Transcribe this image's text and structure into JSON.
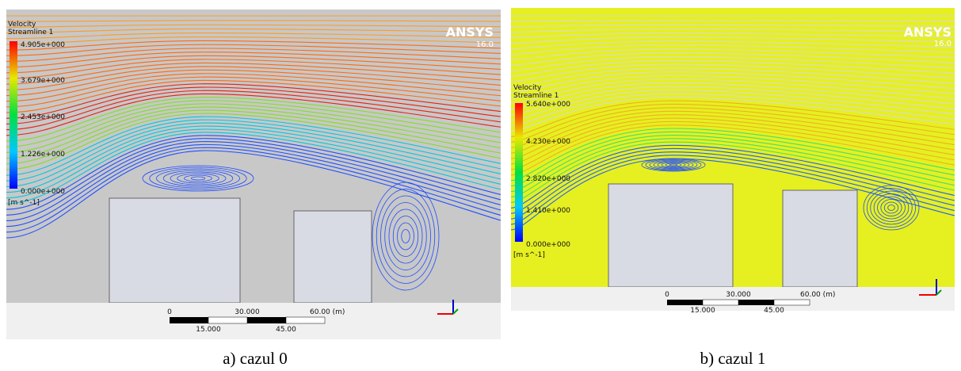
{
  "panels": [
    {
      "legend": {
        "title": "Velocity",
        "subtitle": "Streamline 1",
        "values": [
          "4.905e+000",
          "3.679e+000",
          "2.453e+000",
          "1.226e+000",
          "0.000e+000"
        ],
        "unit": "[m s^-1]"
      },
      "logo": "ANSYS",
      "version": "16.0",
      "scale": {
        "top": [
          "0",
          "30.000",
          "60.00 (m)"
        ],
        "bottom": [
          "15.000",
          "45.00"
        ]
      },
      "caption": "a) cazul 0"
    },
    {
      "legend": {
        "title": "Velocity",
        "subtitle": "Streamline 1",
        "values": [
          "5.640e+000",
          "4.230e+000",
          "2.820e+000",
          "1.410e+000",
          "0.000e+000"
        ],
        "unit": "[m s^-1]"
      },
      "logo": "ANSYS",
      "version": "16.0",
      "scale": {
        "top": [
          "0",
          "30.000",
          "60.00 (m)"
        ],
        "bottom": [
          "15.000",
          "45.00"
        ]
      },
      "caption": "b) cazul 1"
    }
  ]
}
